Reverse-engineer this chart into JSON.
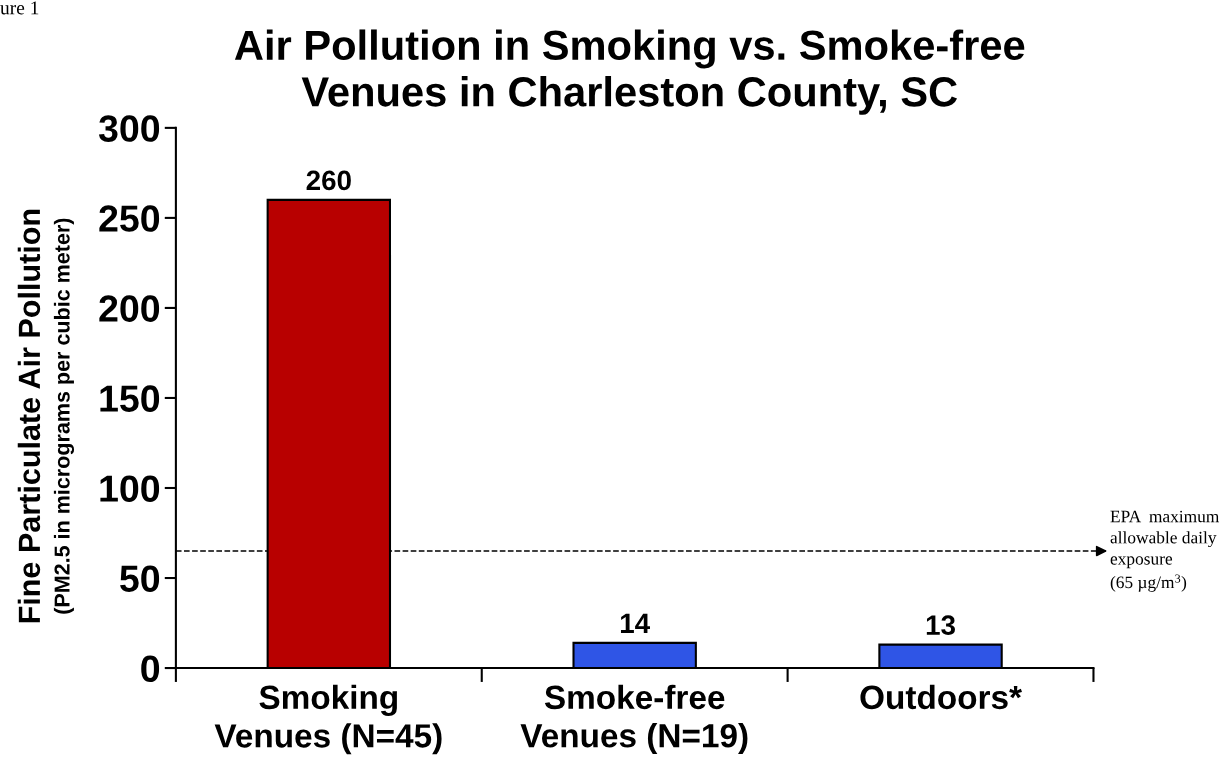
{
  "chart_data": {
    "type": "bar",
    "title": "Air Pollution in Smoking vs. Smoke-free\nVenues in Charleston County, SC",
    "ylabel": "Fine Particulate Air Pollution\n(PM2.5 in micrograms per cubic meter)",
    "categories": [
      "Smoking\nVenues (N=45)",
      "Smoke-free\nVenues (N=19)",
      "Outdoors*"
    ],
    "values": [
      260,
      14,
      13
    ],
    "colors": [
      "#b80000",
      "#2f55e6",
      "#2f55e6"
    ],
    "ylim": [
      0,
      300
    ],
    "yticks": [
      0,
      50,
      100,
      150,
      200,
      250,
      300
    ],
    "data_labels": true,
    "ref_lines": [
      {
        "axis": "y",
        "value": 65,
        "label": "EPA  maximum\nallowable daily\nexposure\n(65 µg/m$^{3}$)",
        "color": "#000000",
        "line_style": "dashed"
      }
    ],
    "annotations": [
      "ure 1"
    ]
  }
}
